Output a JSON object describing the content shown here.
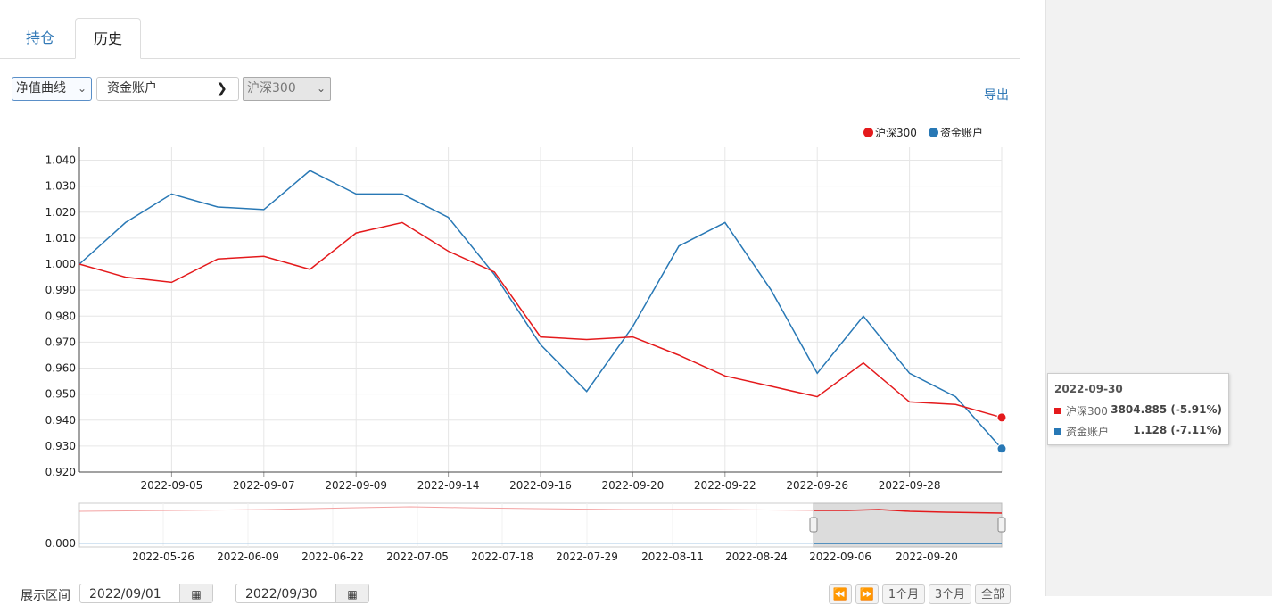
{
  "tabs": [
    {
      "label": "持仓"
    },
    {
      "label": "历史"
    }
  ],
  "controls": {
    "curve_select": "净值曲线",
    "account_select": "资金账户",
    "benchmark_select": "沪深300",
    "export_label": "导出"
  },
  "legend": [
    {
      "name": "沪深300",
      "color": "#e41a1c"
    },
    {
      "name": "资金账户",
      "color": "#2878b5"
    }
  ],
  "tooltip": {
    "date": "2022-09-30",
    "rows": [
      {
        "name": "沪深300",
        "value": "3804.885 (-5.91%)",
        "color": "#e41a1c"
      },
      {
        "name": "资金账户",
        "value": "1.128 (-7.11%)",
        "color": "#2878b5"
      }
    ]
  },
  "bottom": {
    "range_label": "展示区间",
    "start_date": "2022/09/01",
    "end_date": "2022/09/30",
    "btn_first_icon": "rewind-icon",
    "btn_last_icon": "fast-forward-icon",
    "btn_1m": "1个月",
    "btn_3m": "3个月",
    "btn_all": "全部"
  },
  "chart_data": {
    "type": "line",
    "ylim": [
      0.92,
      1.045
    ],
    "yticks": [
      "1.040",
      "1.030",
      "1.020",
      "1.010",
      "1.000",
      "0.990",
      "0.980",
      "0.970",
      "0.960",
      "0.950",
      "0.940",
      "0.930",
      "0.920"
    ],
    "ytick_values": [
      1.04,
      1.03,
      1.02,
      1.01,
      1.0,
      0.99,
      0.98,
      0.97,
      0.96,
      0.95,
      0.94,
      0.93,
      0.92
    ],
    "xtick_labels": [
      "2022-09-05",
      "2022-09-07",
      "2022-09-09",
      "2022-09-14",
      "2022-09-16",
      "2022-09-20",
      "2022-09-22",
      "2022-09-26",
      "2022-09-28"
    ],
    "xtick_index": [
      2,
      4,
      6,
      8,
      10,
      12,
      14,
      16,
      18
    ],
    "grid": true,
    "legend_position": "top-right",
    "series": [
      {
        "name": "沪深300",
        "color": "#e41a1c",
        "values": [
          1.0,
          0.995,
          0.993,
          1.002,
          1.003,
          0.998,
          1.012,
          1.016,
          1.005,
          0.997,
          0.972,
          0.971,
          0.972,
          0.965,
          0.957,
          0.953,
          0.949,
          0.962,
          0.947,
          0.946,
          0.941
        ]
      },
      {
        "name": "资金账户",
        "color": "#2878b5",
        "values": [
          1.0,
          1.016,
          1.027,
          1.022,
          1.021,
          1.036,
          1.027,
          1.027,
          1.018,
          0.996,
          0.969,
          0.951,
          0.976,
          1.007,
          1.016,
          0.99,
          0.958,
          0.98,
          0.958,
          0.949,
          0.929
        ]
      }
    ],
    "navigator": {
      "ytick": "0.000",
      "xtick_labels": [
        "2022-05-26",
        "2022-06-09",
        "2022-06-22",
        "2022-07-05",
        "2022-07-18",
        "2022-07-29",
        "2022-08-11",
        "2022-08-24",
        "2022-09-06",
        "2022-09-20"
      ]
    }
  }
}
